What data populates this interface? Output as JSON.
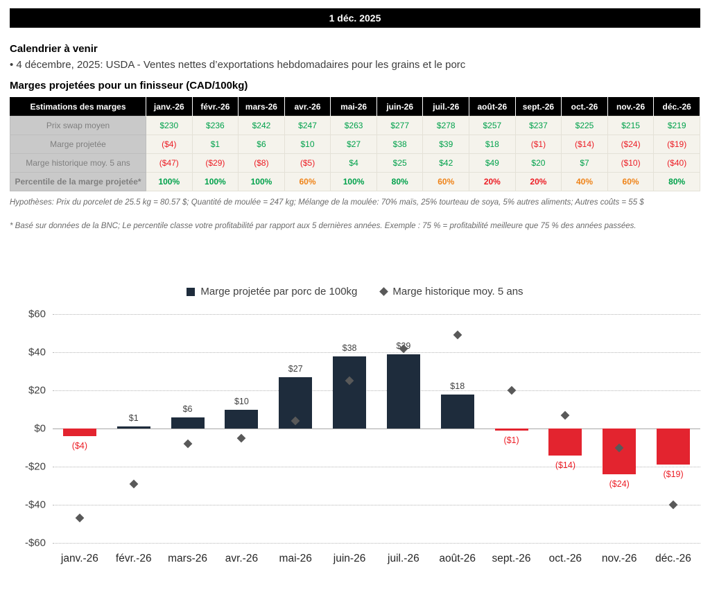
{
  "header": {
    "date": "1 déc. 2025"
  },
  "calendar": {
    "title": "Calendrier à venir",
    "items": [
      "• 4 décembre, 2025: USDA - Ventes nettes d’exportations hebdomadaires pour les grains et le porc"
    ]
  },
  "colors": {
    "green": "#00a14b",
    "red": "#ec1c24",
    "orange": "#ef8318",
    "bar_positive": "#1e2c3c",
    "bar_negative": "#e3242f",
    "diamond": "#595959",
    "bar_label_positive": "#404040"
  },
  "table": {
    "title": "Marges projetées pour un finisseur (CAD/100kg)",
    "header_label": "Estimations des marges",
    "months": [
      "janv.-26",
      "févr.-26",
      "mars-26",
      "avr.-26",
      "mai-26",
      "juin-26",
      "juil.-26",
      "août-26",
      "sept.-26",
      "oct.-26",
      "nov.-26",
      "déc.-26"
    ],
    "rows": [
      {
        "label": "Prix swap moyen",
        "bold": false,
        "values": [
          "$230",
          "$236",
          "$242",
          "$247",
          "$263",
          "$277",
          "$278",
          "$257",
          "$237",
          "$225",
          "$215",
          "$219"
        ],
        "value_colors": [
          "green",
          "green",
          "green",
          "green",
          "green",
          "green",
          "green",
          "green",
          "green",
          "green",
          "green",
          "green"
        ]
      },
      {
        "label": "Marge projetée",
        "bold": false,
        "values": [
          "($4)",
          "$1",
          "$6",
          "$10",
          "$27",
          "$38",
          "$39",
          "$18",
          "($1)",
          "($14)",
          "($24)",
          "($19)"
        ],
        "value_colors": [
          "red",
          "green",
          "green",
          "green",
          "green",
          "green",
          "green",
          "green",
          "red",
          "red",
          "red",
          "red"
        ]
      },
      {
        "label": "Marge historique moy. 5 ans",
        "bold": false,
        "values": [
          "($47)",
          "($29)",
          "($8)",
          "($5)",
          "$4",
          "$25",
          "$42",
          "$49",
          "$20",
          "$7",
          "($10)",
          "($40)"
        ],
        "value_colors": [
          "red",
          "red",
          "red",
          "red",
          "green",
          "green",
          "green",
          "green",
          "green",
          "green",
          "red",
          "red"
        ]
      },
      {
        "label": "Percentile de la marge projetée*",
        "bold": true,
        "values": [
          "100%",
          "100%",
          "100%",
          "60%",
          "100%",
          "80%",
          "60%",
          "20%",
          "20%",
          "40%",
          "60%",
          "80%"
        ],
        "value_colors": [
          "green",
          "green",
          "green",
          "orange",
          "green",
          "green",
          "orange",
          "red",
          "red",
          "orange",
          "orange",
          "green"
        ]
      }
    ]
  },
  "notes": {
    "assumptions": "Hypothèses: Prix du porcelet de 25.5 kg = 80.57 $; Quantité de moulée = 247 kg; Mélange de la moulée: 70% maïs, 25% tourteau de soya, 5% autres aliments; Autres coûts = 55 $",
    "percentile": "* Basé sur données de la BNC; Le percentile classe votre profitabilité par rapport aux 5 dernières années. Exemple : 75 % = profitabilité meilleure que 75 % des années passées."
  },
  "chart_data": {
    "type": "bar",
    "categories": [
      "janv.-26",
      "févr.-26",
      "mars-26",
      "avr.-26",
      "mai-26",
      "juin-26",
      "juil.-26",
      "août-26",
      "sept.-26",
      "oct.-26",
      "nov.-26",
      "déc.-26"
    ],
    "series": [
      {
        "name": "Marge projetée par porc de 100kg",
        "type": "bar",
        "values": [
          -4,
          1,
          6,
          10,
          27,
          38,
          39,
          18,
          -1,
          -14,
          -24,
          -19
        ],
        "labels": [
          "($4)",
          "$1",
          "$6",
          "$10",
          "$27",
          "$38",
          "$39",
          "$18",
          "($1)",
          "($14)",
          "($24)",
          "($19)"
        ]
      },
      {
        "name": "Marge historique moy. 5 ans",
        "type": "scatter",
        "marker": "diamond",
        "values": [
          -47,
          -29,
          -8,
          -5,
          4,
          25,
          42,
          49,
          20,
          7,
          -10,
          -40
        ]
      }
    ],
    "ylim": [
      -60,
      60
    ],
    "yticks": [
      {
        "value": 60,
        "label": "$60"
      },
      {
        "value": 40,
        "label": "$40"
      },
      {
        "value": 20,
        "label": "$20"
      },
      {
        "value": 0,
        "label": "$0"
      },
      {
        "value": -20,
        "label": "-$20"
      },
      {
        "value": -40,
        "label": "-$40"
      },
      {
        "value": -60,
        "label": "-$60"
      }
    ],
    "grid": "dotted-horizontal",
    "legend_position": "top-center"
  }
}
